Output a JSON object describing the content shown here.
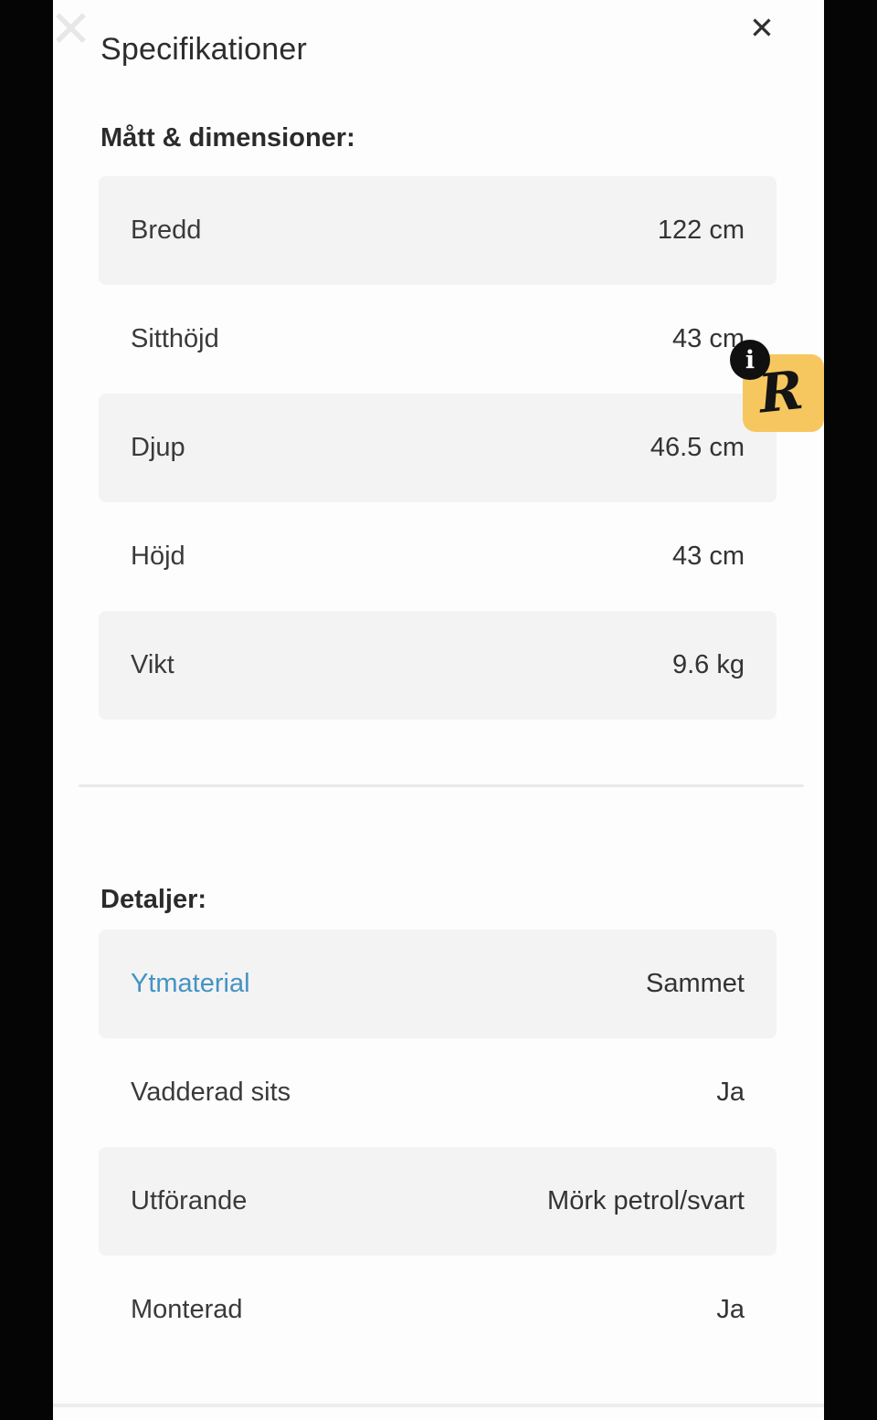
{
  "modal": {
    "title": "Specifikationer",
    "close_icon": "✕"
  },
  "watermarks": {
    "ghost_x_icon": "✕",
    "info_icon": "i",
    "badge_letter": "R"
  },
  "sections": [
    {
      "heading": "Mått & dimensioner:",
      "rows": [
        {
          "label": "Bredd",
          "value": "122 cm"
        },
        {
          "label": "Sitthöjd",
          "value": "43 cm"
        },
        {
          "label": "Djup",
          "value": "46.5 cm"
        },
        {
          "label": "Höjd",
          "value": "43 cm"
        },
        {
          "label": "Vikt",
          "value": "9.6 kg"
        }
      ]
    },
    {
      "heading": "Detaljer:",
      "rows": [
        {
          "label": "Ytmaterial",
          "value": "Sammet"
        },
        {
          "label": "Vadderad sits",
          "value": "Ja"
        },
        {
          "label": "Utförande",
          "value": "Mörk petrol/svart"
        },
        {
          "label": "Monterad",
          "value": "Ja"
        }
      ]
    }
  ],
  "colors": {
    "link_blue": "#4493c4",
    "badge_yellow": "#f5c75e",
    "row_gray": "#f3f3f3",
    "letterbox_black": "#050505"
  }
}
